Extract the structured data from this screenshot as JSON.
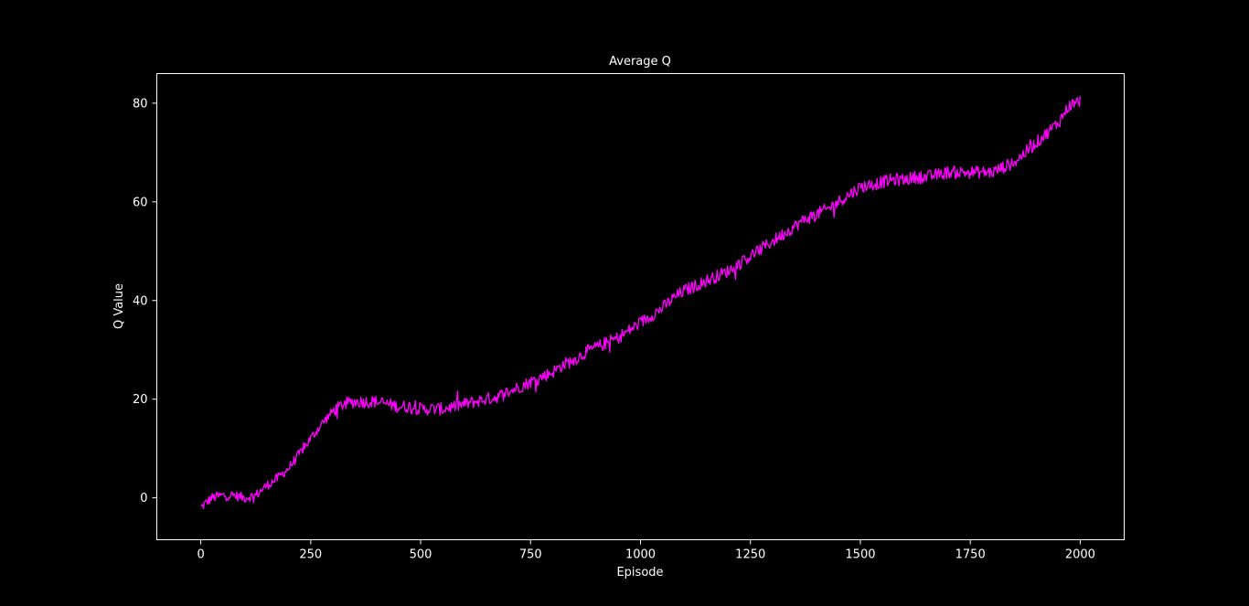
{
  "chart_data": {
    "type": "line",
    "title": "Average Q",
    "xlabel": "Episode",
    "ylabel": "Q Value",
    "xlim": [
      -100,
      2100
    ],
    "ylim": [
      -8.5,
      86
    ],
    "xticks": [
      0,
      250,
      500,
      750,
      1000,
      1250,
      1500,
      1750,
      2000
    ],
    "yticks": [
      0,
      20,
      40,
      60,
      80
    ],
    "grid": false,
    "legend": "none",
    "colors": {
      "background": "#000000",
      "axes": "#ffffff",
      "text": "#ffffff",
      "line": "#ff00ff"
    },
    "series": [
      {
        "color": "#ff00ff",
        "x": [
          0,
          25,
          50,
          75,
          100,
          125,
          150,
          175,
          200,
          225,
          250,
          275,
          300,
          325,
          350,
          375,
          400,
          425,
          450,
          475,
          500,
          525,
          550,
          575,
          600,
          625,
          650,
          675,
          700,
          725,
          750,
          775,
          800,
          825,
          850,
          875,
          900,
          925,
          950,
          975,
          1000,
          1025,
          1050,
          1075,
          1100,
          1125,
          1150,
          1175,
          1200,
          1225,
          1250,
          1275,
          1300,
          1325,
          1350,
          1375,
          1400,
          1425,
          1450,
          1475,
          1500,
          1525,
          1550,
          1575,
          1600,
          1625,
          1650,
          1675,
          1700,
          1725,
          1750,
          1775,
          1800,
          1825,
          1850,
          1875,
          1900,
          1925,
          1950,
          1975,
          2000
        ],
        "values": [
          -2.0,
          0.0,
          0.5,
          0.5,
          0.0,
          0.5,
          2.5,
          4.0,
          6.0,
          9.0,
          12.0,
          15.0,
          17.5,
          19.0,
          19.5,
          19.5,
          19.5,
          19.0,
          18.5,
          18.5,
          18.0,
          18.0,
          18.0,
          18.5,
          19.0,
          19.5,
          20.0,
          20.5,
          21.5,
          22.5,
          23.5,
          24.5,
          25.5,
          27.0,
          28.0,
          29.5,
          30.5,
          31.5,
          32.5,
          34.0,
          35.5,
          37.0,
          38.5,
          40.5,
          42.0,
          43.0,
          44.0,
          45.0,
          46.0,
          47.5,
          49.0,
          50.5,
          52.0,
          53.5,
          55.0,
          56.5,
          57.5,
          58.5,
          60.0,
          61.5,
          63.0,
          63.5,
          64.0,
          64.5,
          64.5,
          65.0,
          65.0,
          65.5,
          66.0,
          66.0,
          66.0,
          66.0,
          66.0,
          67.0,
          68.0,
          70.0,
          72.0,
          74.0,
          76.0,
          79.5,
          80.5
        ]
      }
    ]
  }
}
